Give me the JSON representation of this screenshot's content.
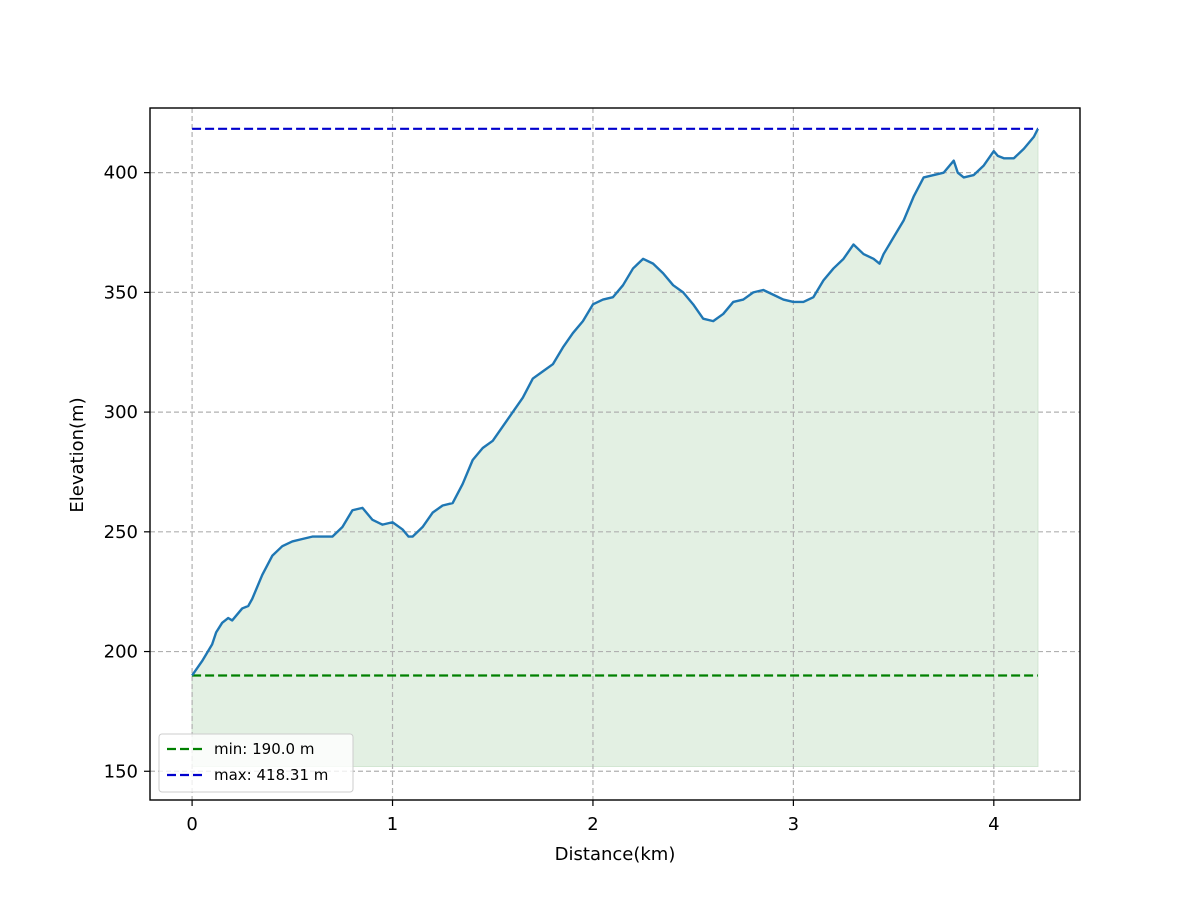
{
  "chart_data": {
    "type": "line",
    "xlabel": "Distance(km)",
    "ylabel": "Elevation(m)",
    "xlim": [
      -0.21,
      4.43
    ],
    "ylim": [
      138,
      427
    ],
    "x_ticks": [
      0,
      1,
      2,
      3,
      4
    ],
    "y_ticks": [
      150,
      200,
      250,
      300,
      350,
      400
    ],
    "grid": true,
    "fill_baseline": 152,
    "legend": {
      "placement": "lower-left",
      "entries": [
        "min: 190.0 m",
        "max: 418.31 m"
      ]
    },
    "reference_lines": [
      {
        "label": "min: 190.0 m",
        "y": 190.0,
        "x_start": 0,
        "x_end": 4.22,
        "color": "#008000",
        "style": "dashed"
      },
      {
        "label": "max: 418.31 m",
        "y": 418.31,
        "x_start": 0,
        "x_end": 4.22,
        "color": "#0000cd",
        "style": "dashed"
      }
    ],
    "series": [
      {
        "color": "#1f77b4",
        "fill_color": "#e3f0e3",
        "x": [
          0,
          0.05,
          0.1,
          0.12,
          0.15,
          0.18,
          0.2,
          0.25,
          0.28,
          0.3,
          0.35,
          0.4,
          0.45,
          0.5,
          0.55,
          0.6,
          0.65,
          0.7,
          0.75,
          0.8,
          0.85,
          0.9,
          0.95,
          1.0,
          1.05,
          1.08,
          1.1,
          1.15,
          1.2,
          1.25,
          1.3,
          1.35,
          1.4,
          1.45,
          1.5,
          1.55,
          1.6,
          1.65,
          1.7,
          1.75,
          1.8,
          1.85,
          1.9,
          1.95,
          2.0,
          2.05,
          2.1,
          2.15,
          2.2,
          2.25,
          2.3,
          2.35,
          2.4,
          2.45,
          2.5,
          2.55,
          2.6,
          2.65,
          2.7,
          2.75,
          2.8,
          2.85,
          2.9,
          2.95,
          3.0,
          3.05,
          3.1,
          3.15,
          3.2,
          3.25,
          3.3,
          3.35,
          3.4,
          3.43,
          3.45,
          3.5,
          3.55,
          3.6,
          3.65,
          3.7,
          3.75,
          3.8,
          3.82,
          3.85,
          3.9,
          3.95,
          4.0,
          4.02,
          4.05,
          4.1,
          4.15,
          4.2,
          4.22
        ],
        "y": [
          190,
          196,
          203,
          208,
          212,
          214,
          213,
          218,
          219,
          222,
          232,
          240,
          244,
          246,
          247,
          248,
          248,
          248,
          252,
          259,
          260,
          255,
          253,
          254,
          251,
          248,
          248,
          252,
          258,
          261,
          262,
          270,
          280,
          285,
          288,
          294,
          300,
          306,
          314,
          317,
          320,
          327,
          333,
          338,
          345,
          347,
          348,
          353,
          360,
          364,
          362,
          358,
          353,
          350,
          345,
          339,
          338,
          341,
          346,
          347,
          350,
          351,
          349,
          347,
          346,
          346,
          348,
          355,
          360,
          364,
          370,
          366,
          364,
          362,
          366,
          373,
          380,
          390,
          398,
          399,
          400,
          405,
          400,
          398,
          399,
          403,
          409,
          407,
          406,
          406,
          410,
          415,
          418.31
        ]
      }
    ]
  }
}
